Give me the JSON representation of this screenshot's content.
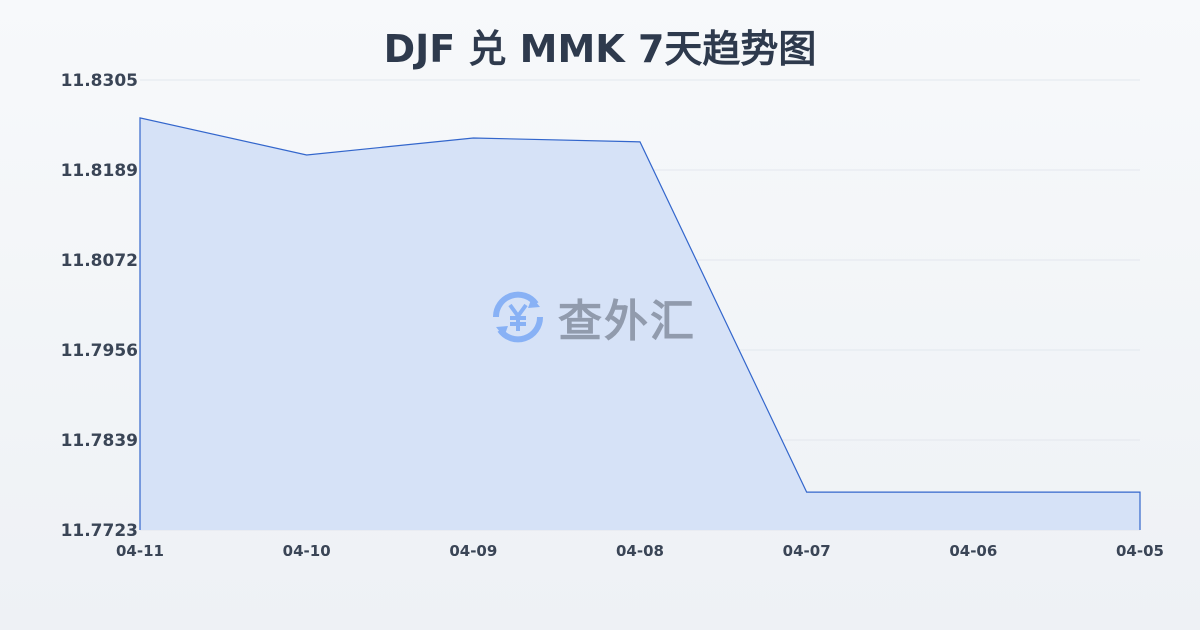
{
  "chart_data": {
    "type": "area",
    "title": "DJF 兑 MMK 7天趋势图",
    "categories": [
      "04-11",
      "04-10",
      "04-09",
      "04-08",
      "04-07",
      "04-06",
      "04-05"
    ],
    "values": [
      11.8256,
      11.8208,
      11.823,
      11.8225,
      11.7772,
      11.7772,
      11.7772
    ],
    "yticks": [
      "11.8305",
      "11.8189",
      "11.8072",
      "11.7956",
      "11.7839",
      "11.7723"
    ],
    "ylim": [
      11.7723,
      11.8305
    ],
    "grid": true,
    "line_color": "#3366cc",
    "fill_color": "#d6e2f7"
  },
  "watermark": {
    "text": "查外汇",
    "icon": "yen-exchange-icon",
    "color": "#4a8af4"
  }
}
